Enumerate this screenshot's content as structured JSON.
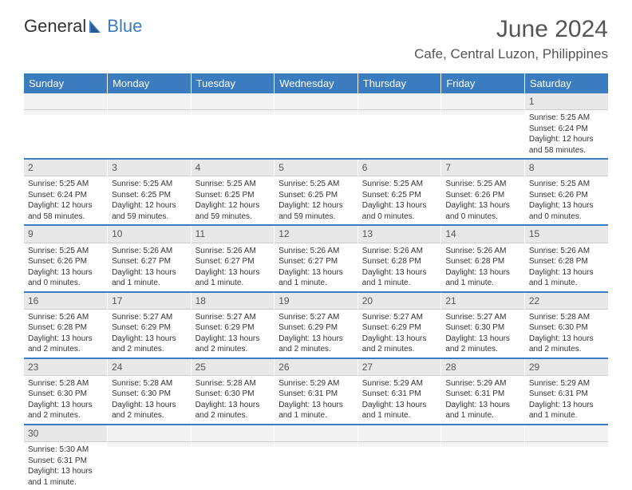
{
  "logo": {
    "text1": "General",
    "text2": "Blue"
  },
  "title": "June 2024",
  "location": "Cafe, Central Luzon, Philippines",
  "colors": {
    "header_bg": "#3b7bbf",
    "header_text": "#ffffff",
    "daynum_bg": "#e8e8e8",
    "row_divider": "#3b7bbf",
    "body_text": "#333333"
  },
  "weekdays": [
    "Sunday",
    "Monday",
    "Tuesday",
    "Wednesday",
    "Thursday",
    "Friday",
    "Saturday"
  ],
  "weeks": [
    [
      null,
      null,
      null,
      null,
      null,
      null,
      {
        "n": "1",
        "sr": "5:25 AM",
        "ss": "6:24 PM",
        "dl": "12 hours and 58 minutes."
      }
    ],
    [
      {
        "n": "2",
        "sr": "5:25 AM",
        "ss": "6:24 PM",
        "dl": "12 hours and 58 minutes."
      },
      {
        "n": "3",
        "sr": "5:25 AM",
        "ss": "6:25 PM",
        "dl": "12 hours and 59 minutes."
      },
      {
        "n": "4",
        "sr": "5:25 AM",
        "ss": "6:25 PM",
        "dl": "12 hours and 59 minutes."
      },
      {
        "n": "5",
        "sr": "5:25 AM",
        "ss": "6:25 PM",
        "dl": "12 hours and 59 minutes."
      },
      {
        "n": "6",
        "sr": "5:25 AM",
        "ss": "6:25 PM",
        "dl": "13 hours and 0 minutes."
      },
      {
        "n": "7",
        "sr": "5:25 AM",
        "ss": "6:26 PM",
        "dl": "13 hours and 0 minutes."
      },
      {
        "n": "8",
        "sr": "5:25 AM",
        "ss": "6:26 PM",
        "dl": "13 hours and 0 minutes."
      }
    ],
    [
      {
        "n": "9",
        "sr": "5:25 AM",
        "ss": "6:26 PM",
        "dl": "13 hours and 0 minutes."
      },
      {
        "n": "10",
        "sr": "5:26 AM",
        "ss": "6:27 PM",
        "dl": "13 hours and 1 minute."
      },
      {
        "n": "11",
        "sr": "5:26 AM",
        "ss": "6:27 PM",
        "dl": "13 hours and 1 minute."
      },
      {
        "n": "12",
        "sr": "5:26 AM",
        "ss": "6:27 PM",
        "dl": "13 hours and 1 minute."
      },
      {
        "n": "13",
        "sr": "5:26 AM",
        "ss": "6:28 PM",
        "dl": "13 hours and 1 minute."
      },
      {
        "n": "14",
        "sr": "5:26 AM",
        "ss": "6:28 PM",
        "dl": "13 hours and 1 minute."
      },
      {
        "n": "15",
        "sr": "5:26 AM",
        "ss": "6:28 PM",
        "dl": "13 hours and 1 minute."
      }
    ],
    [
      {
        "n": "16",
        "sr": "5:26 AM",
        "ss": "6:28 PM",
        "dl": "13 hours and 2 minutes."
      },
      {
        "n": "17",
        "sr": "5:27 AM",
        "ss": "6:29 PM",
        "dl": "13 hours and 2 minutes."
      },
      {
        "n": "18",
        "sr": "5:27 AM",
        "ss": "6:29 PM",
        "dl": "13 hours and 2 minutes."
      },
      {
        "n": "19",
        "sr": "5:27 AM",
        "ss": "6:29 PM",
        "dl": "13 hours and 2 minutes."
      },
      {
        "n": "20",
        "sr": "5:27 AM",
        "ss": "6:29 PM",
        "dl": "13 hours and 2 minutes."
      },
      {
        "n": "21",
        "sr": "5:27 AM",
        "ss": "6:30 PM",
        "dl": "13 hours and 2 minutes."
      },
      {
        "n": "22",
        "sr": "5:28 AM",
        "ss": "6:30 PM",
        "dl": "13 hours and 2 minutes."
      }
    ],
    [
      {
        "n": "23",
        "sr": "5:28 AM",
        "ss": "6:30 PM",
        "dl": "13 hours and 2 minutes."
      },
      {
        "n": "24",
        "sr": "5:28 AM",
        "ss": "6:30 PM",
        "dl": "13 hours and 2 minutes."
      },
      {
        "n": "25",
        "sr": "5:28 AM",
        "ss": "6:30 PM",
        "dl": "13 hours and 2 minutes."
      },
      {
        "n": "26",
        "sr": "5:29 AM",
        "ss": "6:31 PM",
        "dl": "13 hours and 1 minute."
      },
      {
        "n": "27",
        "sr": "5:29 AM",
        "ss": "6:31 PM",
        "dl": "13 hours and 1 minute."
      },
      {
        "n": "28",
        "sr": "5:29 AM",
        "ss": "6:31 PM",
        "dl": "13 hours and 1 minute."
      },
      {
        "n": "29",
        "sr": "5:29 AM",
        "ss": "6:31 PM",
        "dl": "13 hours and 1 minute."
      }
    ],
    [
      {
        "n": "30",
        "sr": "5:30 AM",
        "ss": "6:31 PM",
        "dl": "13 hours and 1 minute."
      },
      null,
      null,
      null,
      null,
      null,
      null
    ]
  ],
  "labels": {
    "sunrise": "Sunrise:",
    "sunset": "Sunset:",
    "daylight": "Daylight:"
  }
}
